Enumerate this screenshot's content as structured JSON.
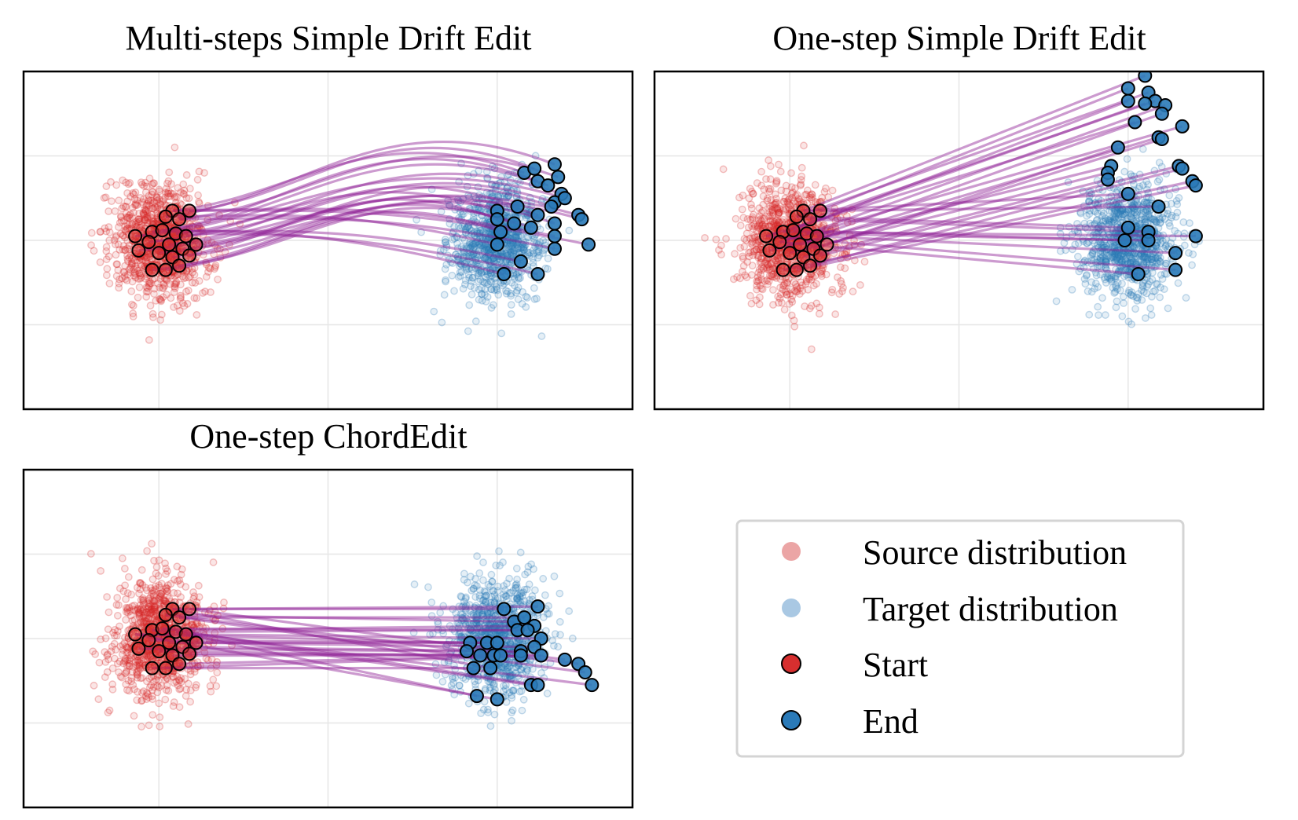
{
  "chart_data": [
    {
      "type": "scatter",
      "title": "Multi-steps Simple Drift Edit",
      "xlabel": "",
      "ylabel": "",
      "grid": true,
      "xlim": [
        -2,
        7
      ],
      "ylim": [
        -2,
        2
      ],
      "x_gridlines": [
        0,
        2.5,
        5
      ],
      "y_gridlines": [
        -1,
        0,
        1,
        2
      ],
      "path_style": "curved",
      "series": [
        {
          "name": "Source distribution",
          "distribution": "gaussian",
          "center": [
            0,
            0
          ],
          "spread": [
            0.35,
            0.35
          ]
        },
        {
          "name": "Target distribution",
          "distribution": "gaussian",
          "center": [
            5,
            0
          ],
          "spread": [
            0.35,
            0.35
          ]
        },
        {
          "name": "Start",
          "points": [
            [
              0.2,
              0.35
            ],
            [
              0.45,
              0.35
            ],
            [
              0.1,
              0.28
            ],
            [
              0.3,
              0.25
            ],
            [
              -0.1,
              0.1
            ],
            [
              0.05,
              0.12
            ],
            [
              0.25,
              0.08
            ],
            [
              0.4,
              0.05
            ],
            [
              -0.35,
              0.05
            ],
            [
              -0.15,
              -0.02
            ],
            [
              0.15,
              -0.05
            ],
            [
              0.35,
              -0.1
            ],
            [
              0.55,
              -0.05
            ],
            [
              -0.3,
              -0.12
            ],
            [
              0.0,
              -0.15
            ],
            [
              0.2,
              -0.2
            ],
            [
              0.45,
              -0.18
            ],
            [
              0.3,
              -0.3
            ],
            [
              -0.1,
              -0.35
            ],
            [
              0.1,
              -0.35
            ]
          ]
        },
        {
          "name": "End",
          "points": [
            [
              5.4,
              0.8
            ],
            [
              5.55,
              0.85
            ],
            [
              5.85,
              0.9
            ],
            [
              5.9,
              0.75
            ],
            [
              5.6,
              0.7
            ],
            [
              5.75,
              0.65
            ],
            [
              5.95,
              0.55
            ],
            [
              5.85,
              0.45
            ],
            [
              6.0,
              0.5
            ],
            [
              5.0,
              0.35
            ],
            [
              5.3,
              0.4
            ],
            [
              5.6,
              0.3
            ],
            [
              5.8,
              0.4
            ],
            [
              6.2,
              0.3
            ],
            [
              6.25,
              0.25
            ],
            [
              5.0,
              0.25
            ],
            [
              5.25,
              0.2
            ],
            [
              5.5,
              0.15
            ],
            [
              5.85,
              0.2
            ],
            [
              5.05,
              0.1
            ],
            [
              5.85,
              0.05
            ],
            [
              6.35,
              -0.05
            ],
            [
              5.0,
              -0.05
            ],
            [
              5.85,
              -0.1
            ],
            [
              5.35,
              -0.25
            ],
            [
              5.1,
              -0.4
            ],
            [
              5.6,
              -0.4
            ]
          ]
        }
      ]
    },
    {
      "type": "scatter",
      "title": "One-step Simple Drift Edit",
      "xlabel": "",
      "ylabel": "",
      "grid": true,
      "xlim": [
        -2,
        7
      ],
      "ylim": [
        -2,
        2
      ],
      "x_gridlines": [
        0,
        2.5,
        5
      ],
      "y_gridlines": [
        -1,
        0,
        1,
        2
      ],
      "path_style": "straight",
      "series": [
        {
          "name": "Source distribution",
          "distribution": "gaussian",
          "center": [
            0,
            0
          ],
          "spread": [
            0.35,
            0.35
          ]
        },
        {
          "name": "Target distribution",
          "distribution": "gaussian",
          "center": [
            5,
            0
          ],
          "spread": [
            0.35,
            0.35
          ]
        },
        {
          "name": "Start",
          "points": [
            [
              0.2,
              0.35
            ],
            [
              0.45,
              0.35
            ],
            [
              0.1,
              0.28
            ],
            [
              0.3,
              0.25
            ],
            [
              -0.1,
              0.1
            ],
            [
              0.05,
              0.12
            ],
            [
              0.25,
              0.08
            ],
            [
              0.4,
              0.05
            ],
            [
              -0.35,
              0.05
            ],
            [
              -0.15,
              -0.02
            ],
            [
              0.15,
              -0.05
            ],
            [
              0.35,
              -0.1
            ],
            [
              0.55,
              -0.05
            ],
            [
              -0.3,
              -0.12
            ],
            [
              0.0,
              -0.15
            ],
            [
              0.2,
              -0.2
            ],
            [
              0.45,
              -0.18
            ],
            [
              0.3,
              -0.3
            ],
            [
              -0.1,
              -0.35
            ],
            [
              0.1,
              -0.35
            ]
          ]
        },
        {
          "name": "End",
          "points": [
            [
              5.25,
              1.95
            ],
            [
              5.0,
              1.8
            ],
            [
              5.3,
              1.75
            ],
            [
              5.4,
              1.65
            ],
            [
              5.25,
              1.62
            ],
            [
              5.0,
              1.65
            ],
            [
              5.55,
              1.6
            ],
            [
              5.5,
              1.5
            ],
            [
              5.1,
              1.4
            ],
            [
              5.8,
              1.35
            ],
            [
              5.45,
              1.22
            ],
            [
              5.5,
              1.2
            ],
            [
              4.85,
              1.1
            ],
            [
              4.75,
              0.88
            ],
            [
              4.7,
              0.8
            ],
            [
              4.7,
              0.72
            ],
            [
              5.75,
              0.88
            ],
            [
              5.8,
              0.85
            ],
            [
              5.95,
              0.7
            ],
            [
              6.0,
              0.65
            ],
            [
              5.0,
              0.55
            ],
            [
              5.45,
              0.4
            ],
            [
              5.0,
              0.15
            ],
            [
              5.3,
              0.1
            ],
            [
              6.0,
              0.05
            ],
            [
              4.95,
              0.0
            ],
            [
              5.3,
              0.0
            ],
            [
              5.7,
              -0.15
            ],
            [
              5.7,
              -0.35
            ],
            [
              5.15,
              -0.4
            ]
          ]
        }
      ]
    },
    {
      "type": "scatter",
      "title": "One-step ChordEdit",
      "xlabel": "",
      "ylabel": "",
      "grid": true,
      "xlim": [
        -2,
        7
      ],
      "ylim": [
        -2,
        2
      ],
      "x_gridlines": [
        0,
        2.5,
        5
      ],
      "y_gridlines": [
        -1,
        0,
        1,
        2
      ],
      "path_style": "straight",
      "series": [
        {
          "name": "Source distribution",
          "distribution": "gaussian",
          "center": [
            0,
            0
          ],
          "spread": [
            0.35,
            0.35
          ]
        },
        {
          "name": "Target distribution",
          "distribution": "gaussian",
          "center": [
            5,
            0
          ],
          "spread": [
            0.35,
            0.35
          ]
        },
        {
          "name": "Start",
          "points": [
            [
              0.2,
              0.35
            ],
            [
              0.45,
              0.35
            ],
            [
              0.1,
              0.28
            ],
            [
              0.3,
              0.25
            ],
            [
              -0.1,
              0.1
            ],
            [
              0.05,
              0.12
            ],
            [
              0.25,
              0.08
            ],
            [
              0.4,
              0.05
            ],
            [
              -0.35,
              0.05
            ],
            [
              -0.15,
              -0.02
            ],
            [
              0.15,
              -0.05
            ],
            [
              0.35,
              -0.1
            ],
            [
              0.55,
              -0.05
            ],
            [
              -0.3,
              -0.12
            ],
            [
              0.0,
              -0.15
            ],
            [
              0.2,
              -0.2
            ],
            [
              0.45,
              -0.18
            ],
            [
              0.3,
              -0.3
            ],
            [
              -0.1,
              -0.35
            ],
            [
              0.1,
              -0.35
            ]
          ]
        },
        {
          "name": "End",
          "points": [
            [
              5.1,
              0.35
            ],
            [
              5.6,
              0.38
            ],
            [
              5.25,
              0.2
            ],
            [
              5.4,
              0.25
            ],
            [
              5.55,
              0.15
            ],
            [
              5.3,
              0.1
            ],
            [
              5.45,
              0.1
            ],
            [
              5.65,
              0.0
            ],
            [
              4.6,
              -0.05
            ],
            [
              4.85,
              -0.05
            ],
            [
              5.0,
              -0.05
            ],
            [
              5.35,
              -0.15
            ],
            [
              5.55,
              -0.1
            ],
            [
              4.55,
              -0.15
            ],
            [
              4.75,
              -0.2
            ],
            [
              4.95,
              -0.2
            ],
            [
              5.05,
              -0.2
            ],
            [
              5.35,
              -0.2
            ],
            [
              5.65,
              -0.2
            ],
            [
              4.65,
              -0.35
            ],
            [
              4.9,
              -0.35
            ],
            [
              6.0,
              -0.25
            ],
            [
              6.2,
              -0.3
            ],
            [
              6.3,
              -0.4
            ],
            [
              5.5,
              -0.55
            ],
            [
              5.6,
              -0.55
            ],
            [
              6.4,
              -0.55
            ],
            [
              4.7,
              -0.68
            ],
            [
              5.0,
              -0.72
            ]
          ]
        }
      ]
    }
  ],
  "legend": {
    "items": [
      {
        "label": "Source distribution",
        "color": "#eba5a5"
      },
      {
        "label": "Target distribution",
        "color": "#a9c8e3"
      },
      {
        "label": "Start",
        "color": "#d62f2f"
      },
      {
        "label": "End",
        "color": "#2a7ab8"
      }
    ]
  },
  "colors": {
    "source": "#d62728",
    "target": "#2a7ab8",
    "start": "#d62f2f",
    "end": "#2a7ab8",
    "path": "#8e1f94",
    "grid": "#e6e6e6"
  }
}
